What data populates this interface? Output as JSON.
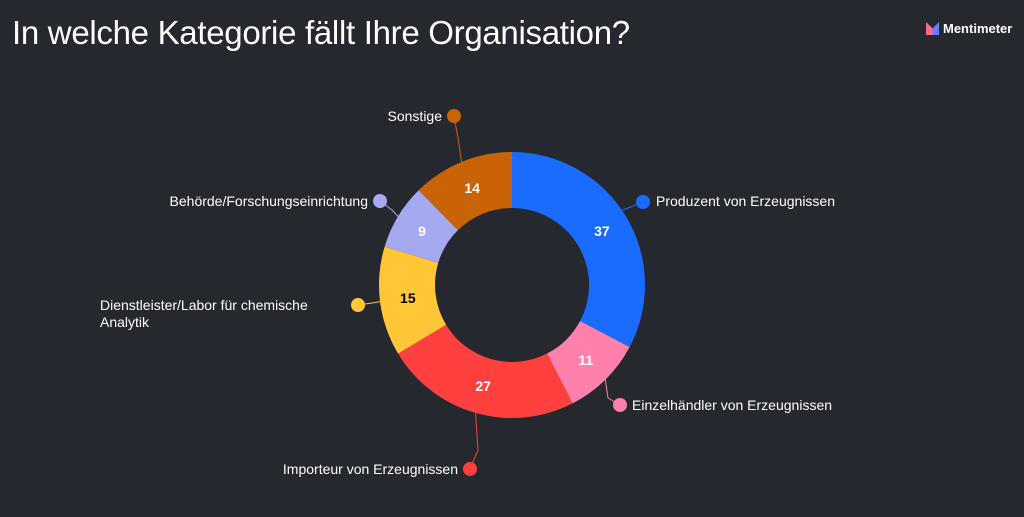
{
  "title": "In welche Kategorie fällt Ihre Organisation?",
  "brand": {
    "name": "Mentimeter"
  },
  "chart_data": {
    "type": "pie",
    "variant": "donut",
    "title": "In welche Kategorie fällt Ihre Organisation?",
    "categories": [
      "Produzent von Erzeugnissen",
      "Einzelhändler von Erzeugnissen",
      "Importeur von Erzeugnissen",
      "Dienstleister/Labor für chemische Analytik",
      "Behörde/Forschungseinrichtung",
      "Sonstige"
    ],
    "values": [
      37,
      11,
      27,
      15,
      9,
      14
    ],
    "colors": [
      "#196cff",
      "#ff80ab",
      "#ff403f",
      "#ffc737",
      "#a4a9f0",
      "#c86405"
    ],
    "value_label_colors": [
      "#ffffff",
      "#ffffff",
      "#ffffff",
      "#000000",
      "#ffffff",
      "#ffffff"
    ]
  }
}
